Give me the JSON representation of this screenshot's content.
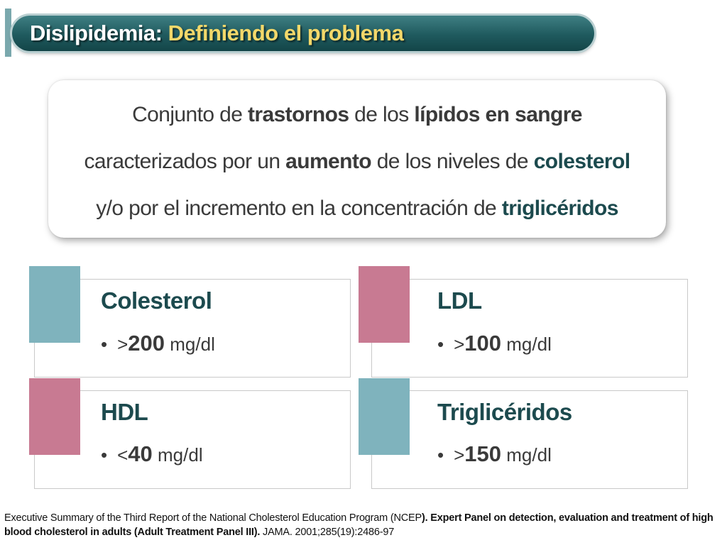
{
  "title": {
    "main": "Dislipidemia:",
    "sub": "Definiendo el problema"
  },
  "definition": {
    "line1": [
      "Conjunto de ",
      "trastornos",
      " de los ",
      "lípidos en sangre"
    ],
    "line2": [
      "caracterizados por un ",
      "aumento",
      " de los niveles de ",
      "colesterol"
    ],
    "line3": [
      "y/o por el incremento en la concentración de ",
      "triglicéridos"
    ]
  },
  "metrics": [
    {
      "name": "Colesterol",
      "operator": ">",
      "value": "200",
      "unit": "mg/dl",
      "color": "#7fb3bd"
    },
    {
      "name": "LDL",
      "operator": ">",
      "value": "100",
      "unit": "mg/dl",
      "color": "#c87a92"
    },
    {
      "name": "HDL",
      "operator": "<",
      "value": "40",
      "unit": "mg/dl",
      "color": "#c87a92"
    },
    {
      "name": "Triglicéridos",
      "operator": ">",
      "value": "150",
      "unit": "mg/dl",
      "color": "#7fb3bd"
    }
  ],
  "bullet": "•",
  "reference": {
    "part1": "Executive Summary of the Third Report of the National Cholesterol Education Program (NCEP",
    "part2": "). Expert Panel on detection, evaluation and treatment of high blood cholesterol in adults (Adult Treatment Panel III).",
    "part3": " JAMA. 2001;285(19):2486-97"
  },
  "colors": {
    "title_bar": "#1f5a5e",
    "title_sub": "#f3d86a",
    "accent_text": "#1c4a4e",
    "teal": "#7fb3bd",
    "pink": "#c87a92"
  }
}
